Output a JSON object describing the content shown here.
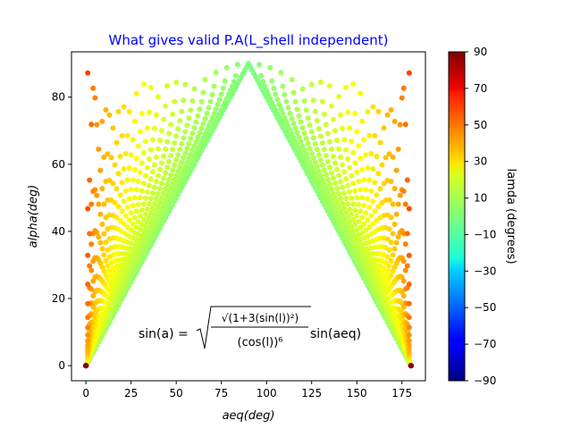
{
  "chart_data": {
    "type": "scatter",
    "title": "What gives valid P.A(L_shell independent)",
    "title_color": "#0000ff",
    "xlabel": "aeq(deg)",
    "ylabel": "alpha(deg)",
    "xlim": [
      -8,
      188
    ],
    "ylim": [
      -4.5,
      93.5
    ],
    "xticks": [
      0,
      25,
      50,
      75,
      100,
      125,
      150,
      175
    ],
    "yticks": [
      0,
      20,
      40,
      60,
      80
    ],
    "grid": false,
    "legend": "none",
    "annotation": {
      "lhs": "sin(a) =",
      "numerator": "√(1+3(sin(l))²)",
      "denominator": "(cos(l))⁶",
      "rhs": "sin(aeq)"
    },
    "colorbar": {
      "label": "lamda (degrees)",
      "colormap": "jet",
      "range": [
        -90,
        90
      ],
      "ticks": [
        90,
        70,
        50,
        30,
        10,
        -10,
        -30,
        -50,
        -70,
        -90
      ]
    },
    "series_description": "sin(alpha) = sqrt(1+3 sin^2(lambda)) / cos^6(lambda) * sin(aeq), plotted for aeq in 0..180 deg, colored by lambda (deg); only valid points with sin(alpha) <= 1",
    "lambda_values_deg": [
      0,
      2,
      4,
      6,
      8,
      10,
      12,
      14,
      16,
      18,
      20,
      22,
      24,
      26,
      28,
      30,
      32,
      34,
      36,
      38,
      40,
      42,
      44,
      46,
      48,
      50,
      52,
      54,
      56,
      58,
      60,
      62,
      64,
      66,
      68,
      70,
      72,
      74,
      76,
      78,
      80,
      82,
      84,
      86,
      88
    ],
    "aeq_step_deg": 1
  }
}
